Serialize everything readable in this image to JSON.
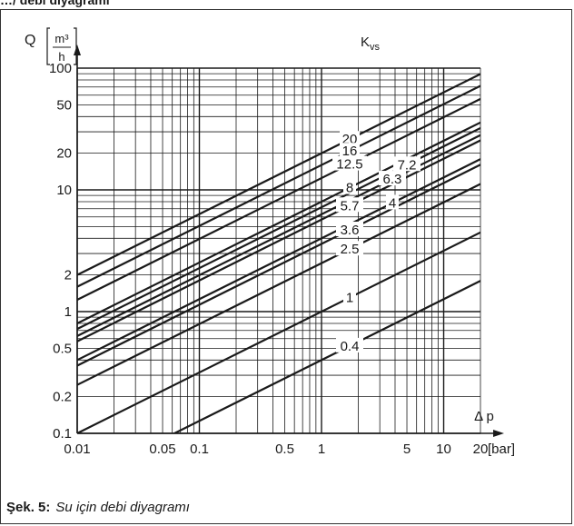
{
  "header_fragment": "…/ debi diyagramı",
  "caption": {
    "number": "Şek. 5:",
    "text": "Su için debi diyagramı"
  },
  "chart_data": {
    "type": "line",
    "title": "",
    "xlabel": "Δ p",
    "x_unit": "[bar]",
    "ylabel": "Q",
    "y_unit_num": "m³",
    "y_unit_den": "h",
    "legend_title": "Kvs",
    "x_scale": "log",
    "y_scale": "log",
    "xlim": [
      0.01,
      20
    ],
    "ylim": [
      0.1,
      100
    ],
    "grid": true,
    "x_ticks": [
      {
        "value": 0.01,
        "label": "0.01"
      },
      {
        "value": 0.05,
        "label": "0.05"
      },
      {
        "value": 0.1,
        "label": "0.1"
      },
      {
        "value": 0.5,
        "label": "0.5"
      },
      {
        "value": 1,
        "label": "1"
      },
      {
        "value": 5,
        "label": "5"
      },
      {
        "value": 10,
        "label": "10"
      },
      {
        "value": 20,
        "label": "20"
      }
    ],
    "y_ticks": [
      {
        "value": 0.1,
        "label": "0.1"
      },
      {
        "value": 0.2,
        "label": "0.2"
      },
      {
        "value": 0.5,
        "label": "0.5"
      },
      {
        "value": 1,
        "label": "1"
      },
      {
        "value": 2,
        "label": "2"
      },
      {
        "value": 10,
        "label": "10"
      },
      {
        "value": 20,
        "label": "20"
      },
      {
        "value": 50,
        "label": "50"
      },
      {
        "value": 100,
        "label": "100"
      }
    ],
    "x_grid": [
      0.01,
      0.02,
      0.03,
      0.04,
      0.05,
      0.06,
      0.07,
      0.08,
      0.09,
      0.1,
      0.2,
      0.3,
      0.4,
      0.5,
      0.6,
      0.7,
      0.8,
      0.9,
      1,
      2,
      3,
      4,
      5,
      6,
      7,
      8,
      9,
      10,
      20
    ],
    "y_grid": [
      0.1,
      0.2,
      0.3,
      0.4,
      0.5,
      0.6,
      0.7,
      0.8,
      0.9,
      1,
      2,
      3,
      4,
      5,
      6,
      7,
      8,
      9,
      10,
      20,
      30,
      40,
      50,
      60,
      70,
      80,
      90,
      100
    ],
    "series": [
      {
        "name": "20",
        "kvs": 20,
        "label_x": 1.7
      },
      {
        "name": "16",
        "kvs": 16,
        "label_x": 1.7
      },
      {
        "name": "12.5",
        "kvs": 12.5,
        "label_x": 1.7
      },
      {
        "name": "8",
        "kvs": 8,
        "label_x": 1.7
      },
      {
        "name": "7.2",
        "kvs": 7.2,
        "label_x": 5.0
      },
      {
        "name": "6.3",
        "kvs": 6.3,
        "label_x": 3.8
      },
      {
        "name": "5.7",
        "kvs": 5.7,
        "label_x": 1.7
      },
      {
        "name": "4",
        "kvs": 4,
        "label_x": 3.8
      },
      {
        "name": "3.6",
        "kvs": 3.6,
        "label_x": 1.7
      },
      {
        "name": "2.5",
        "kvs": 2.5,
        "label_x": 1.7
      },
      {
        "name": "1",
        "kvs": 1,
        "label_x": 1.7
      },
      {
        "name": "0.4",
        "kvs": 0.4,
        "label_x": 1.7
      }
    ],
    "colors": {
      "line": "#1a1a1a",
      "grid": "#1a1a1a",
      "background": "#ffffff"
    }
  }
}
